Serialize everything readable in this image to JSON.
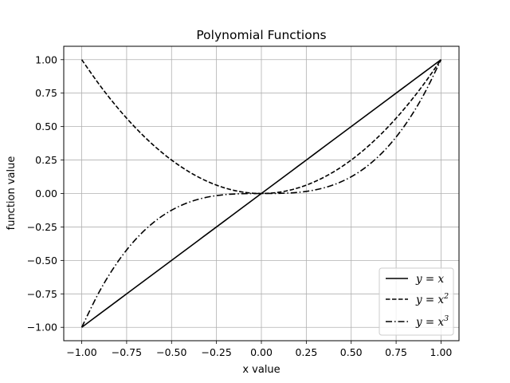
{
  "chart_data": {
    "type": "line",
    "title": "Polynomial Functions",
    "xlabel": "x value",
    "ylabel": "function value",
    "xlim": [
      -1.1,
      1.1
    ],
    "ylim": [
      -1.1,
      1.1
    ],
    "x_ticks": [
      -1.0,
      -0.75,
      -0.5,
      -0.25,
      0.0,
      0.25,
      0.5,
      0.75,
      1.0
    ],
    "x_tick_labels": [
      "−1.00",
      "−0.75",
      "−0.50",
      "−0.25",
      "0.00",
      "0.25",
      "0.50",
      "0.75",
      "1.00"
    ],
    "y_ticks": [
      -1.0,
      -0.75,
      -0.5,
      -0.25,
      0.0,
      0.25,
      0.5,
      0.75,
      1.0
    ],
    "y_tick_labels": [
      "−1.00",
      "−0.75",
      "−0.50",
      "−0.25",
      "0.00",
      "0.25",
      "0.50",
      "0.75",
      "1.00"
    ],
    "grid": true,
    "legend_position": "lower-right",
    "x": [
      -1.0,
      -0.9,
      -0.8,
      -0.7,
      -0.6,
      -0.5,
      -0.4,
      -0.3,
      -0.2,
      -0.1,
      0.0,
      0.1,
      0.2,
      0.3,
      0.4,
      0.5,
      0.6,
      0.7,
      0.8,
      0.9,
      1.0
    ],
    "series": [
      {
        "name": "y = x",
        "legend_base": "y = x",
        "legend_exp": "",
        "line_style": "solid",
        "color": "#000000",
        "values": [
          -1.0,
          -0.9,
          -0.8,
          -0.7,
          -0.6,
          -0.5,
          -0.4,
          -0.3,
          -0.2,
          -0.1,
          0.0,
          0.1,
          0.2,
          0.3,
          0.4,
          0.5,
          0.6,
          0.7,
          0.8,
          0.9,
          1.0
        ]
      },
      {
        "name": "y = x^2",
        "legend_base": "y = x",
        "legend_exp": "2",
        "line_style": "dashed",
        "color": "#000000",
        "values": [
          1.0,
          0.81,
          0.64,
          0.49,
          0.36,
          0.25,
          0.16,
          0.09,
          0.04,
          0.01,
          0.0,
          0.01,
          0.04,
          0.09,
          0.16,
          0.25,
          0.36,
          0.49,
          0.64,
          0.81,
          1.0
        ]
      },
      {
        "name": "y = x^3",
        "legend_base": "y = x",
        "legend_exp": "3",
        "line_style": "dashdot",
        "color": "#000000",
        "values": [
          -1.0,
          -0.729,
          -0.512,
          -0.343,
          -0.216,
          -0.125,
          -0.064,
          -0.027,
          -0.008,
          -0.001,
          0.0,
          0.001,
          0.008,
          0.027,
          0.064,
          0.125,
          0.216,
          0.343,
          0.512,
          0.729,
          1.0
        ]
      }
    ]
  },
  "colors": {
    "grid": "#b0b0b0",
    "axes": "#000000",
    "legend_border": "#cccccc",
    "background": "#ffffff"
  }
}
